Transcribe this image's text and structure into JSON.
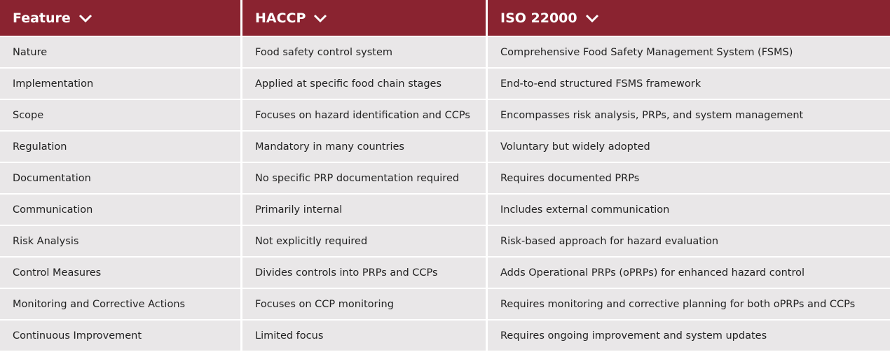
{
  "table": {
    "header": [
      "Feature",
      "HACCP",
      "ISO 22000"
    ],
    "rows": [
      [
        "Nature",
        "Food safety control system",
        "Comprehensive Food Safety Management System (FSMS)"
      ],
      [
        "Implementation",
        "Applied at specific food chain stages",
        "End-to-end structured FSMS framework"
      ],
      [
        "Scope",
        "Focuses on hazard identification and CCPs",
        "Encompasses risk analysis, PRPs, and system management"
      ],
      [
        "Regulation",
        "Mandatory in many countries",
        "Voluntary but widely adopted"
      ],
      [
        "Documentation",
        "No specific PRP documentation required",
        "Requires documented PRPs"
      ],
      [
        "Communication",
        "Primarily internal",
        "Includes external communication"
      ],
      [
        "Risk Analysis",
        "Not explicitly required",
        "Risk-based approach for hazard evaluation"
      ],
      [
        "Control Measures",
        "Divides controls into PRPs and CCPs",
        "Adds Operational PRPs (oPRPs) for enhanced hazard control"
      ],
      [
        "Monitoring and Corrective Actions",
        "Focuses on CCP monitoring",
        "Requires monitoring and corrective planning for both oPRPs and CCPs"
      ],
      [
        "Continuous Improvement",
        "Limited focus",
        "Requires ongoing improvement and system updates"
      ]
    ]
  }
}
